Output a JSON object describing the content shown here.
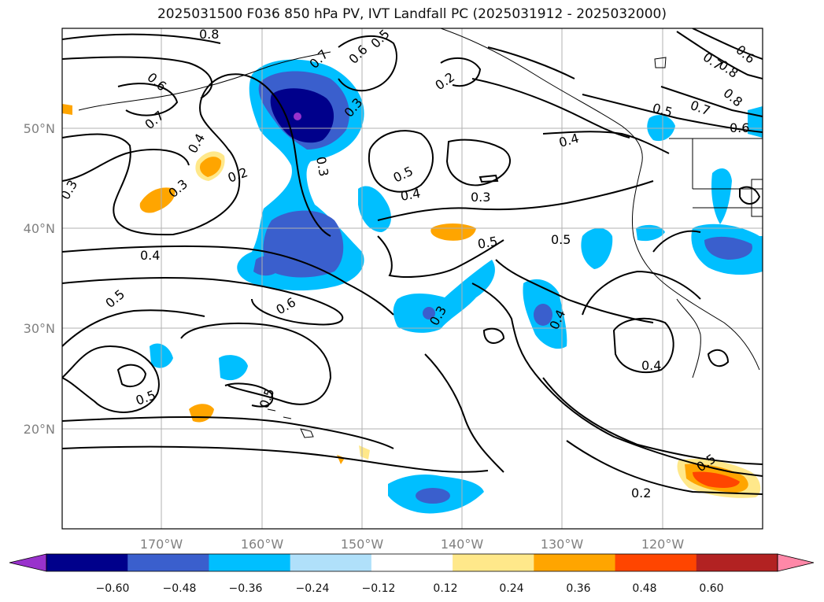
{
  "title": "2025031500 F036 850 hPa PV, IVT Landfall PC (2025031912 - 2025032000)",
  "map": {
    "lat_labels": [
      "50°N",
      "40°N",
      "30°N",
      "20°N"
    ],
    "lon_labels": [
      "170°W",
      "160°W",
      "150°W",
      "140°W",
      "130°W",
      "120°W"
    ],
    "contour_labels": [
      "0.8",
      "0.6",
      "0.7",
      "0.7",
      "0.6",
      "0.5",
      "0.2",
      "0.3",
      "0.4",
      "0.2",
      "0.3",
      "0.3",
      "0.5",
      "0.4",
      "0.3",
      "0.4",
      "0.5",
      "0.5",
      "0.4",
      "0.6",
      "0.5",
      "0.3",
      "0.3",
      "0.4",
      "0.5",
      "0.4",
      "0.5",
      "0.2",
      "0.8",
      "0.7",
      "0.5",
      "0.6",
      "0.7",
      "0.8",
      "0.6",
      "0.5"
    ]
  },
  "colorbar": {
    "ticks": [
      "−0.60",
      "−0.48",
      "−0.36",
      "−0.24",
      "−0.12",
      "0.12",
      "0.24",
      "0.36",
      "0.48",
      "0.60"
    ],
    "colors": [
      "#9932cc",
      "#00008b",
      "#3a5fcd",
      "#00bfff",
      "#b0e0fa",
      "#ffffff",
      "#ffe88a",
      "#ffa500",
      "#ff4500",
      "#b22222",
      "#ff88a8"
    ]
  }
}
